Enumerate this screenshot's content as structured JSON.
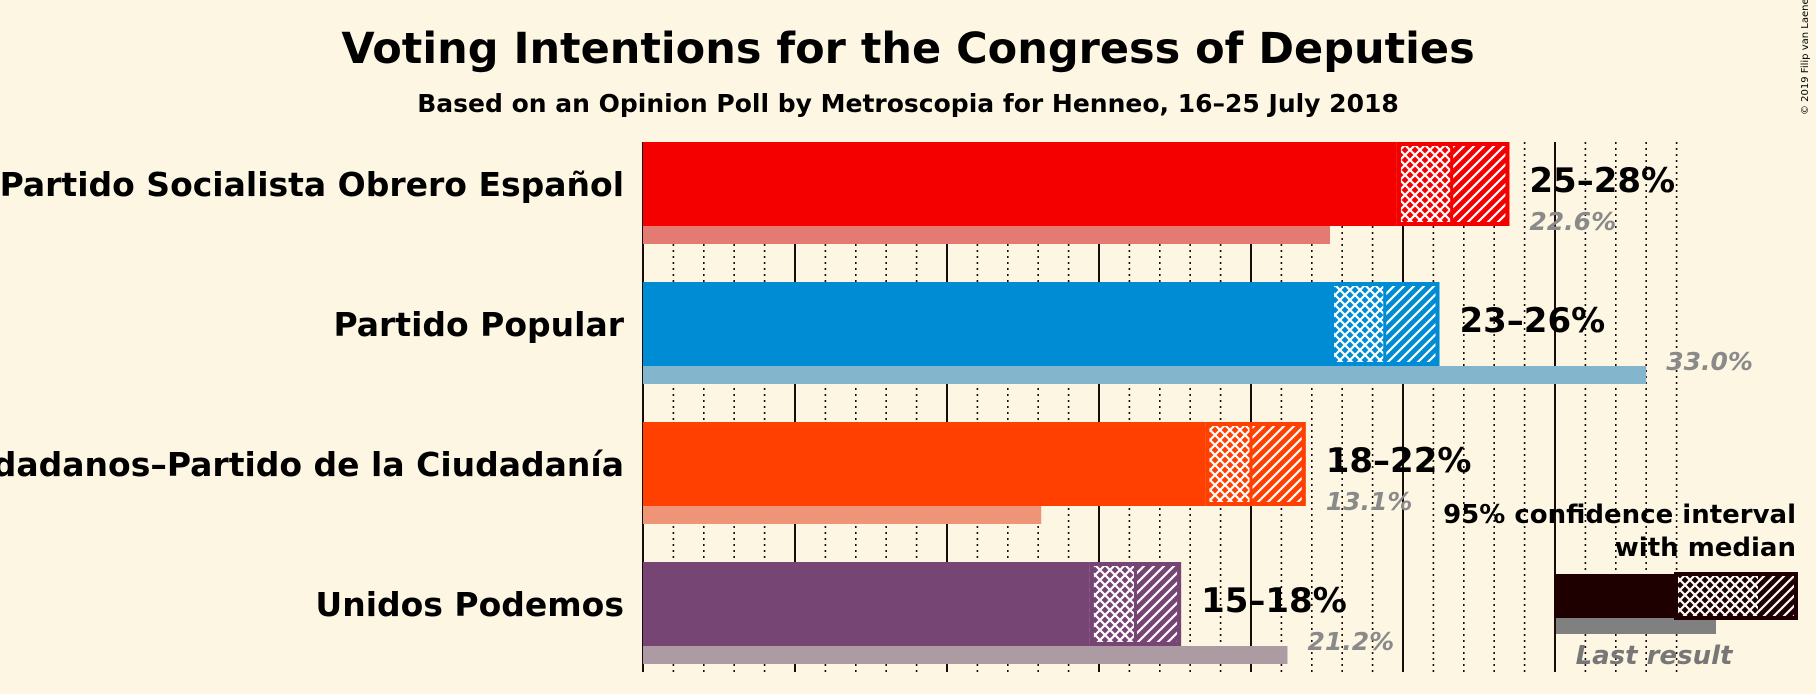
{
  "chart_data": {
    "type": "bar",
    "title": "Voting Intentions for the Congress of Deputies",
    "subtitle": "Based on an Opinion Poll by Metroscopia for Henneo, 16–25 July 2018",
    "copyright": "© 2019 Filip van Laenen",
    "xlim": [
      0,
      35
    ],
    "major_ticks": [
      0,
      5,
      10,
      15,
      20,
      25,
      30
    ],
    "minor_step": 1,
    "series": [
      {
        "name": "Partido Socialista Obrero Español",
        "color": "#f50000",
        "last_color": "#e37b72",
        "ci_low": 24.8,
        "median": 26.6,
        "ci_high": 28.5,
        "range_label": "25–28%",
        "last": 22.6,
        "last_label": "22.6%"
      },
      {
        "name": "Partido Popular",
        "color": "#008bd5",
        "last_color": "#83b6cc",
        "ci_low": 22.6,
        "median": 24.4,
        "ci_high": 26.2,
        "range_label": "23–26%",
        "last": 33.0,
        "last_label": "33.0%"
      },
      {
        "name": "Ciudadanos–Partido de la Ciudadanía",
        "color": "#ff4000",
        "last_color": "#ef9577",
        "ci_low": 18.5,
        "median": 20.0,
        "ci_high": 21.8,
        "range_label": "18–22%",
        "last": 13.1,
        "last_label": "13.1%"
      },
      {
        "name": "Unidos Podemos",
        "color": "#764574",
        "last_color": "#ad9ba4",
        "ci_low": 14.7,
        "median": 16.2,
        "ci_high": 17.7,
        "range_label": "15–18%",
        "last": 21.2,
        "last_label": "21.2%"
      }
    ],
    "legend": {
      "line1": "95% confidence interval",
      "line2": "with median",
      "last_result": "Last result",
      "dark_color": "#1f0000",
      "last_color": "#808080"
    }
  }
}
